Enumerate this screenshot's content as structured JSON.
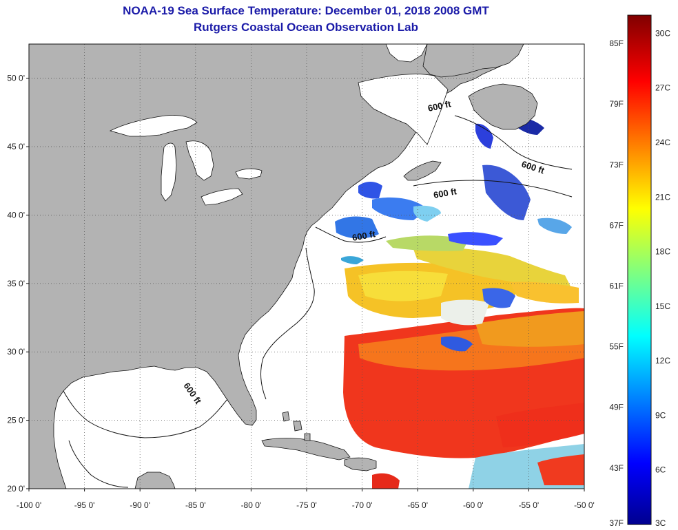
{
  "header": {
    "title": "NOAA-19 Sea Surface Temperature:  December 01, 2018 2008 GMT",
    "subtitle": "Rutgers Coastal Ocean Observation Lab"
  },
  "map": {
    "lon_range": [
      -100,
      -50
    ],
    "lat_range": [
      20,
      52.5
    ],
    "lat_ticks": [
      {
        "value": 50,
        "label": "50 0'"
      },
      {
        "value": 45,
        "label": "45 0'"
      },
      {
        "value": 40,
        "label": "40 0'"
      },
      {
        "value": 35,
        "label": "35 0'"
      },
      {
        "value": 30,
        "label": "30 0'"
      },
      {
        "value": 25,
        "label": "25 0'"
      },
      {
        "value": 20,
        "label": "20 0'"
      }
    ],
    "lon_ticks": [
      {
        "value": -100,
        "label": "-100 0'"
      },
      {
        "value": -95,
        "label": "-95 0'"
      },
      {
        "value": -90,
        "label": "-90 0'"
      },
      {
        "value": -85,
        "label": "-85 0'"
      },
      {
        "value": -80,
        "label": "-80 0'"
      },
      {
        "value": -75,
        "label": "-75 0'"
      },
      {
        "value": -70,
        "label": "-70 0'"
      },
      {
        "value": -65,
        "label": "-65 0'"
      },
      {
        "value": -60,
        "label": "-60 0'"
      },
      {
        "value": -55,
        "label": "-55 0'"
      },
      {
        "value": -50,
        "label": "-50 0'"
      }
    ],
    "depth_label": "600 ft",
    "colors": {
      "land": "#b3b3b3",
      "water_nodata": "#ffffff",
      "grid": "#555555"
    }
  },
  "colorbar": {
    "range_c": [
      3,
      31
    ],
    "fahrenheit_labels": [
      "85F",
      "79F",
      "73F",
      "67F",
      "61F",
      "55F",
      "49F",
      "43F",
      "37F"
    ],
    "celsius_labels": [
      "30C",
      "27C",
      "24C",
      "21C",
      "18C",
      "15C",
      "12C",
      "9C",
      "6C",
      "3C"
    ],
    "colormap": [
      "#00008f",
      "#0000ff",
      "#00ffff",
      "#ffff00",
      "#ff0000",
      "#800000"
    ]
  }
}
